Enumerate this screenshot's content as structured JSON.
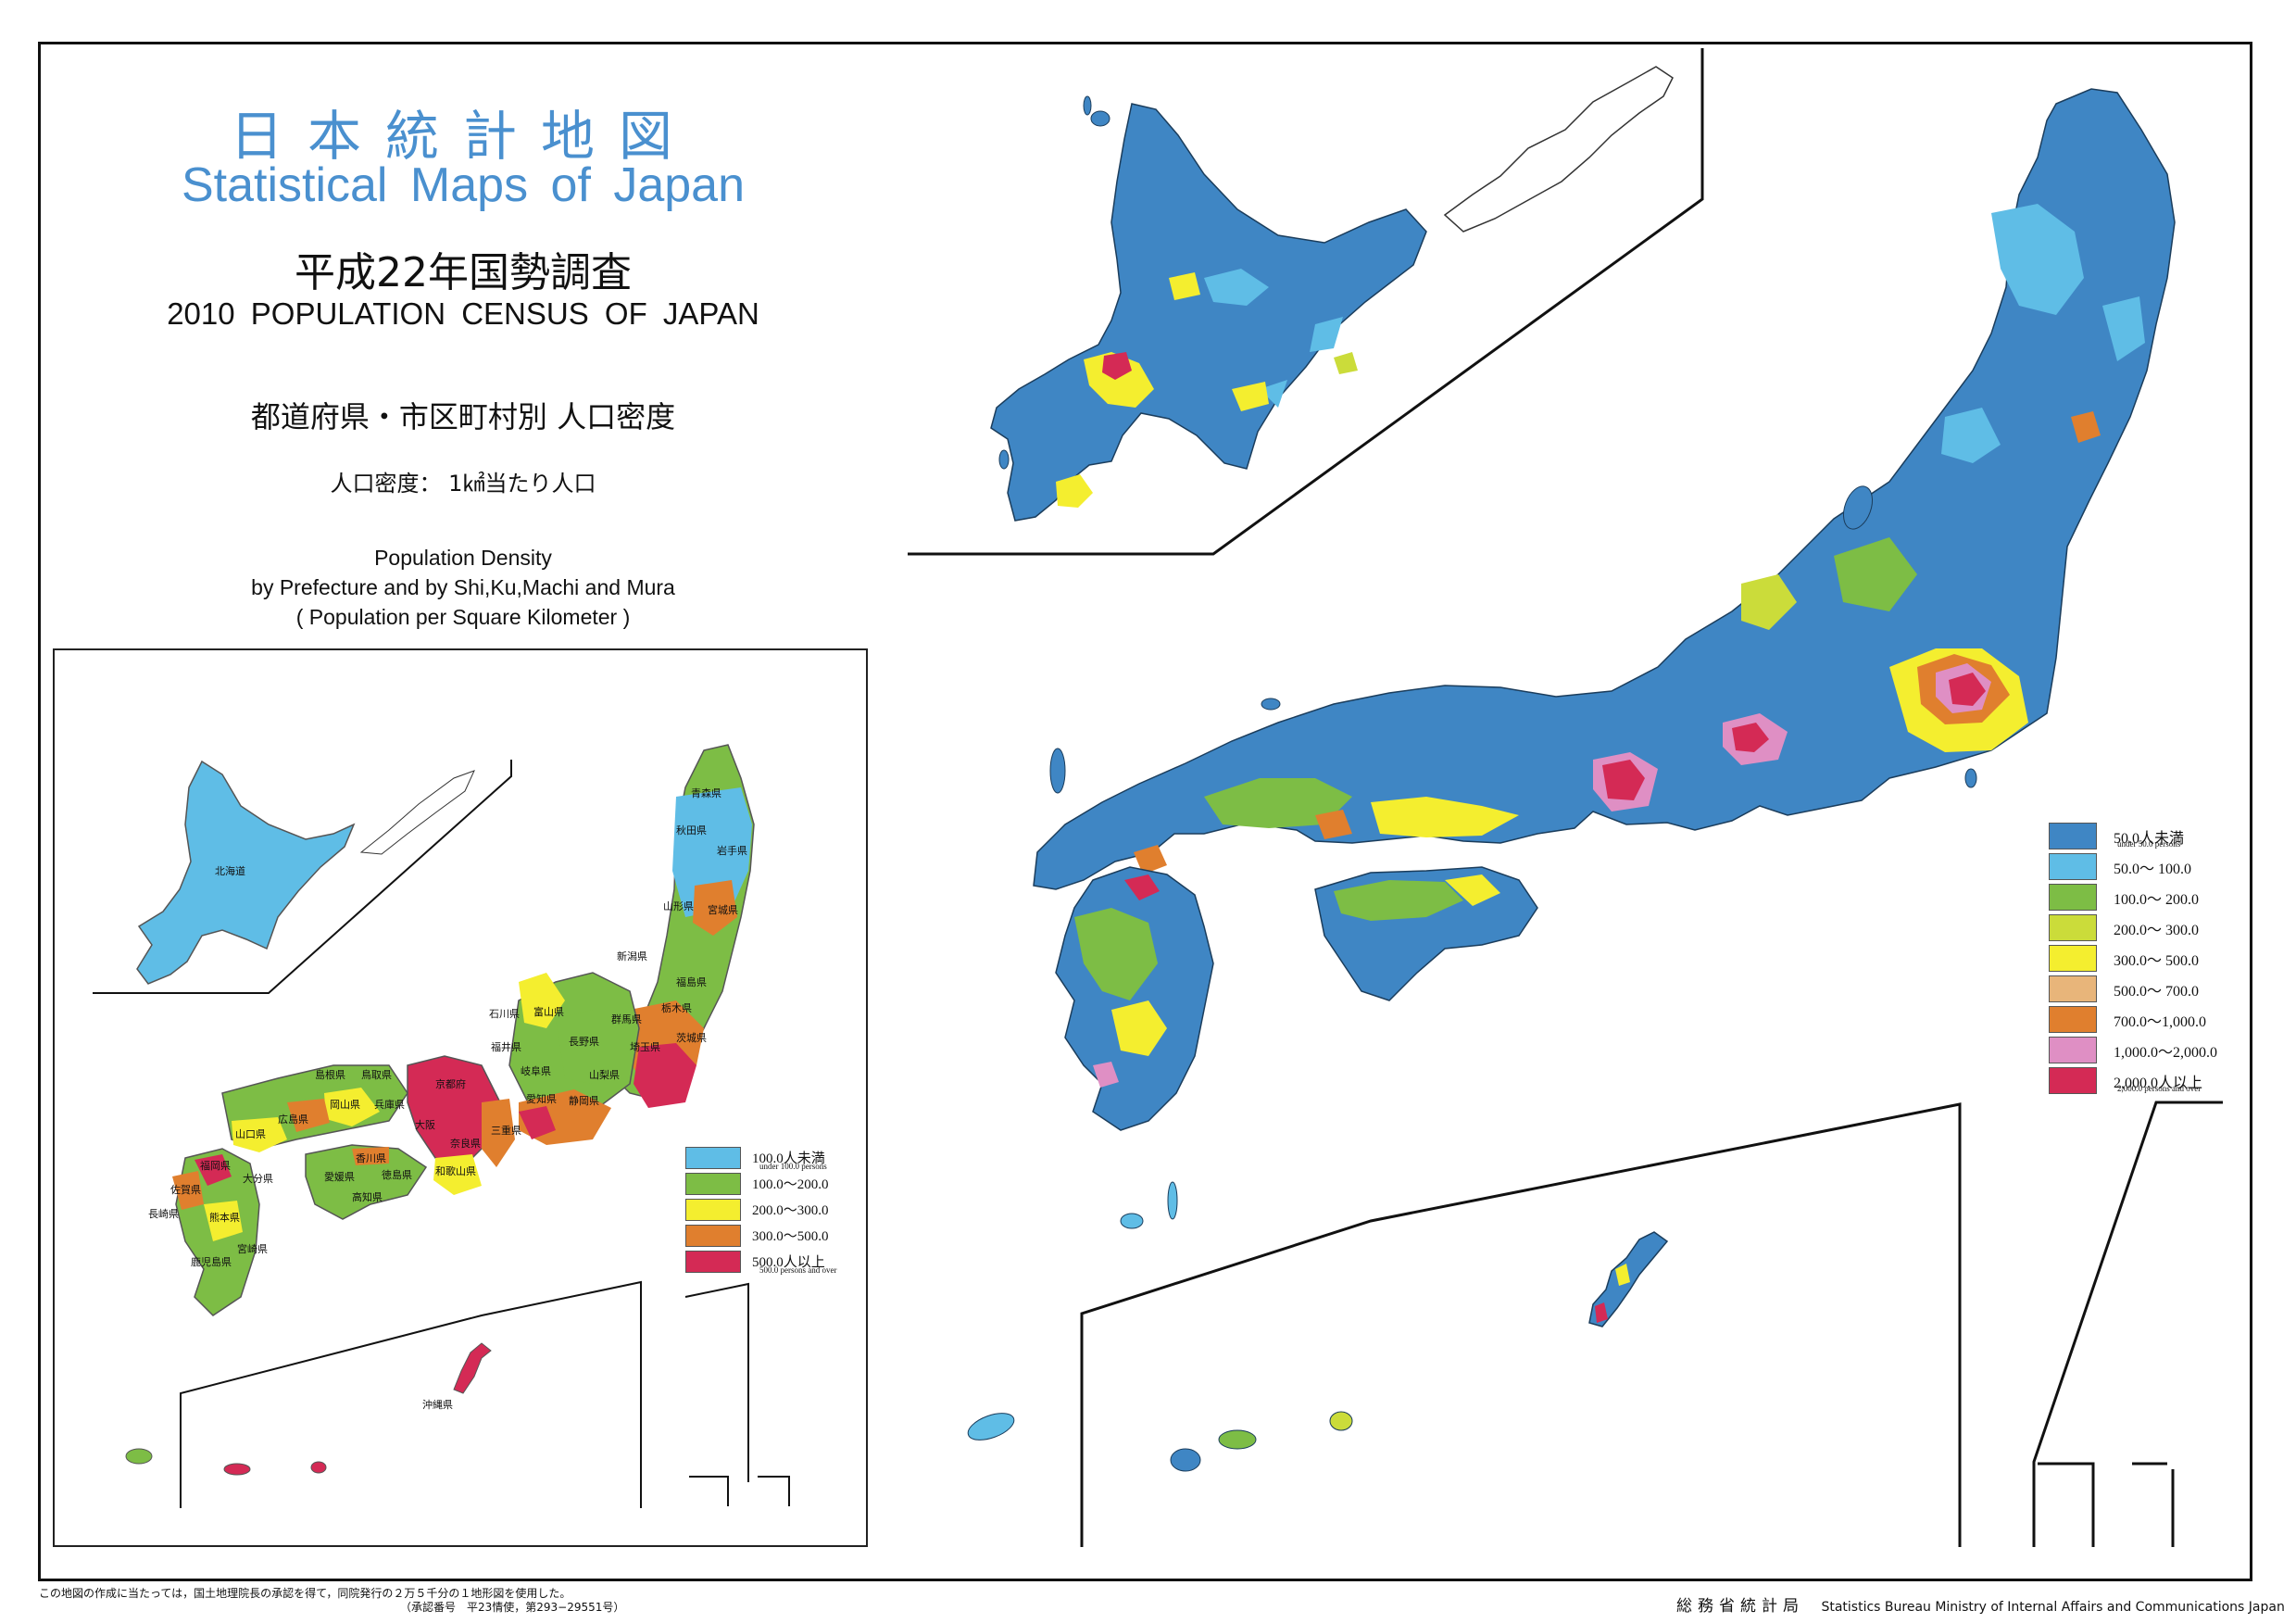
{
  "header": {
    "title_ja": "日本統計地図",
    "title_en": "Statistical Maps of Japan",
    "census_ja": "平成22年国勢調査",
    "census_en": "2010 POPULATION CENSUS OF JAPAN",
    "subject_ja": "都道府県・市区町村別  人口密度",
    "unit_ja": "人口密度：  1㎢当たり人口",
    "subject_en_1": "Population Density",
    "subject_en_2": "by Prefecture and by Shi,Ku,Machi and Mura",
    "subject_en_3": "( Population per Square Kilometer )"
  },
  "colors": {
    "c1": "#3f86c4",
    "c2": "#5fbde6",
    "c3": "#7dbd45",
    "c4": "#cbdc3a",
    "c5": "#f4ee2f",
    "c6": "#e8b57a",
    "c7": "#e07f2e",
    "c8": "#df8fc4",
    "c9": "#d42a55"
  },
  "legend_prefecture": [
    {
      "label": "100.0人未満",
      "sub": "under 100.0 persons",
      "color": "#5fbde6"
    },
    {
      "label": "100.0～200.0",
      "sub": "",
      "color": "#7dbd45"
    },
    {
      "label": "200.0～300.0",
      "sub": "",
      "color": "#f4ee2f"
    },
    {
      "label": "300.0～500.0",
      "sub": "",
      "color": "#e07f2e"
    },
    {
      "label": "500.0人以上",
      "sub": "500.0 persons and over",
      "color": "#d42a55"
    }
  ],
  "legend_municipality": [
    {
      "label": "50.0人未満",
      "sub": "under 50.0 persons",
      "color": "#3f86c4"
    },
    {
      "label": "50.0～   100.0",
      "sub": "",
      "color": "#5fbde6"
    },
    {
      "label": "100.0～  200.0",
      "sub": "",
      "color": "#7dbd45"
    },
    {
      "label": "200.0～  300.0",
      "sub": "",
      "color": "#cbdc3a"
    },
    {
      "label": "300.0～  500.0",
      "sub": "",
      "color": "#f4ee2f"
    },
    {
      "label": "500.0～  700.0",
      "sub": "",
      "color": "#e8b57a"
    },
    {
      "label": "700.0～1,000.0",
      "sub": "",
      "color": "#e07f2e"
    },
    {
      "label": "1,000.0～2,000.0",
      "sub": "",
      "color": "#df8fc4"
    },
    {
      "label": "2,000.0人以上",
      "sub": "2,000.0 persons and over",
      "color": "#d42a55"
    }
  ],
  "prefectures": {
    "hokkaido": "北海道",
    "aomori": "青森県",
    "akita": "秋田県",
    "iwate": "岩手県",
    "yamagata": "山形県",
    "miyagi": "宮城県",
    "niigata": "新潟県",
    "fukushima": "福島県",
    "tochigi": "栃木県",
    "gunma": "群馬県",
    "ibaraki": "茨城県",
    "toyama": "富山県",
    "ishikawa": "石川県",
    "fukui": "福井県",
    "nagano": "長野県",
    "saitama": "埼玉県",
    "gifu": "岐阜県",
    "yamanashi": "山梨県",
    "shizuoka": "静岡県",
    "aichi": "愛知県",
    "mie": "三重県",
    "shimane": "島根県",
    "tottori": "鳥取県",
    "okayama": "岡山県",
    "hyogo": "兵庫県",
    "kyoto": "京都府",
    "hiroshima": "広島県",
    "yamaguchi": "山口県",
    "kagawa": "香川県",
    "ehime": "愛媛県",
    "tokushima": "徳島県",
    "kochi": "高知県",
    "oita": "大分県",
    "fukuoka": "福岡県",
    "saga": "佐賀県",
    "nagasaki": "長崎県",
    "kumamoto": "熊本県",
    "miyazaki": "宮崎県",
    "kagoshima": "鹿児島県",
    "wakayama": "和歌山県",
    "nara": "奈良県",
    "osaka": "大阪",
    "okinawa": "沖縄県"
  },
  "footer": {
    "note_1": "この地図の作成に当たっては，国土地理院長の承認を得て，同院発行の２万５千分の１地形図を使用した。",
    "note_2": "（承認番号　平23情使，第293−29551号）",
    "org_ja": "総務省統計局",
    "org_en": "Statistics Bureau Ministry of Internal Affairs and Communications Japan"
  }
}
